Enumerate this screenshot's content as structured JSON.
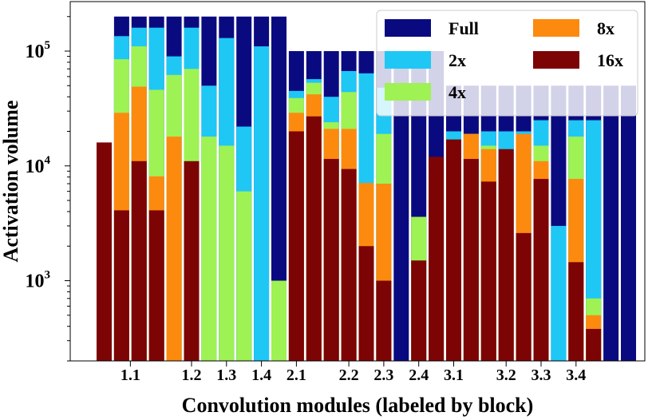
{
  "chart_data": {
    "type": "bar",
    "stacked": true,
    "yscale": "log",
    "ylabel": "Activation volume",
    "xlabel": "Convolution modules (labeled by block)",
    "ylim": [
      200,
      270000
    ],
    "y_ticks": [
      {
        "value": 1000,
        "base": "10",
        "exp": "3"
      },
      {
        "value": 10000,
        "base": "10",
        "exp": "4"
      },
      {
        "value": 100000,
        "base": "10",
        "exp": "5"
      }
    ],
    "x_tick_labels": [
      {
        "label": "1.1",
        "bar_index": 1.5
      },
      {
        "label": "1.2",
        "bar_index": 5.0
      },
      {
        "label": "1.3",
        "bar_index": 7.0
      },
      {
        "label": "1.4",
        "bar_index": 9.0
      },
      {
        "label": "2.1",
        "bar_index": 11.0
      },
      {
        "label": "2.2",
        "bar_index": 14.0
      },
      {
        "label": "2.3",
        "bar_index": 16.0
      },
      {
        "label": "2.4",
        "bar_index": 18.0
      },
      {
        "label": "3.1",
        "bar_index": 20.0
      },
      {
        "label": "3.2",
        "bar_index": 23.0
      },
      {
        "label": "3.3",
        "bar_index": 25.0
      },
      {
        "label": "3.4",
        "bar_index": 27.0
      }
    ],
    "series": [
      {
        "name": "Full",
        "color": "#0a0a80",
        "values": [
          0,
          200000,
          200000,
          200000,
          200000,
          200000,
          200000,
          200000,
          200000,
          200000,
          200000,
          100000,
          100000,
          100000,
          100000,
          100000,
          100000,
          100000,
          100000,
          100000,
          50000,
          50000,
          50000,
          50000,
          50000,
          50000,
          50000,
          50000,
          50000,
          50000,
          50000
        ]
      },
      {
        "name": "2x",
        "color": "#1fc7f5",
        "values": [
          0,
          135000,
          160000,
          160000,
          90000,
          160000,
          50000,
          130000,
          22000,
          110000,
          0,
          45000,
          57000,
          40000,
          67000,
          64000,
          48000,
          0,
          0,
          0,
          20000,
          15000,
          20000,
          20000,
          20000,
          25000,
          3000,
          25000,
          25000,
          0,
          0
        ]
      },
      {
        "name": "4x",
        "color": "#9ef253",
        "values": [
          0,
          85000,
          110000,
          46000,
          62000,
          70000,
          18000,
          15000,
          6000,
          0,
          1000,
          39000,
          53000,
          24000,
          44000,
          0,
          19000,
          0,
          3600,
          9200,
          0,
          19000,
          15000,
          0,
          0,
          15000,
          0,
          18000,
          700,
          0,
          0
        ]
      },
      {
        "name": "8x",
        "color": "#fc8a0f",
        "values": [
          0,
          29000,
          49000,
          8100,
          18000,
          0,
          0,
          0,
          0,
          0,
          0,
          29000,
          42000,
          21000,
          21000,
          7100,
          7000,
          0,
          0,
          0,
          14000,
          19000,
          14000,
          8300,
          19000,
          11000,
          0,
          7700,
          500,
          0,
          0
        ]
      },
      {
        "name": "16x",
        "color": "#7d0404",
        "values": [
          16000,
          4100,
          11000,
          4100,
          0,
          11000,
          0,
          0,
          0,
          0,
          0,
          20000,
          27000,
          11500,
          9400,
          2000,
          1000,
          0,
          1500,
          12000,
          17000,
          11500,
          7300,
          14000,
          2600,
          7700,
          0,
          1450,
          380,
          0,
          0
        ]
      }
    ],
    "legend": {
      "position": "top-right",
      "columns": 2,
      "entries": [
        "Full",
        "2x",
        "4x",
        "8x",
        "16x"
      ],
      "order": [
        "Full",
        "8x",
        "2x",
        "16x",
        "4x"
      ]
    }
  }
}
